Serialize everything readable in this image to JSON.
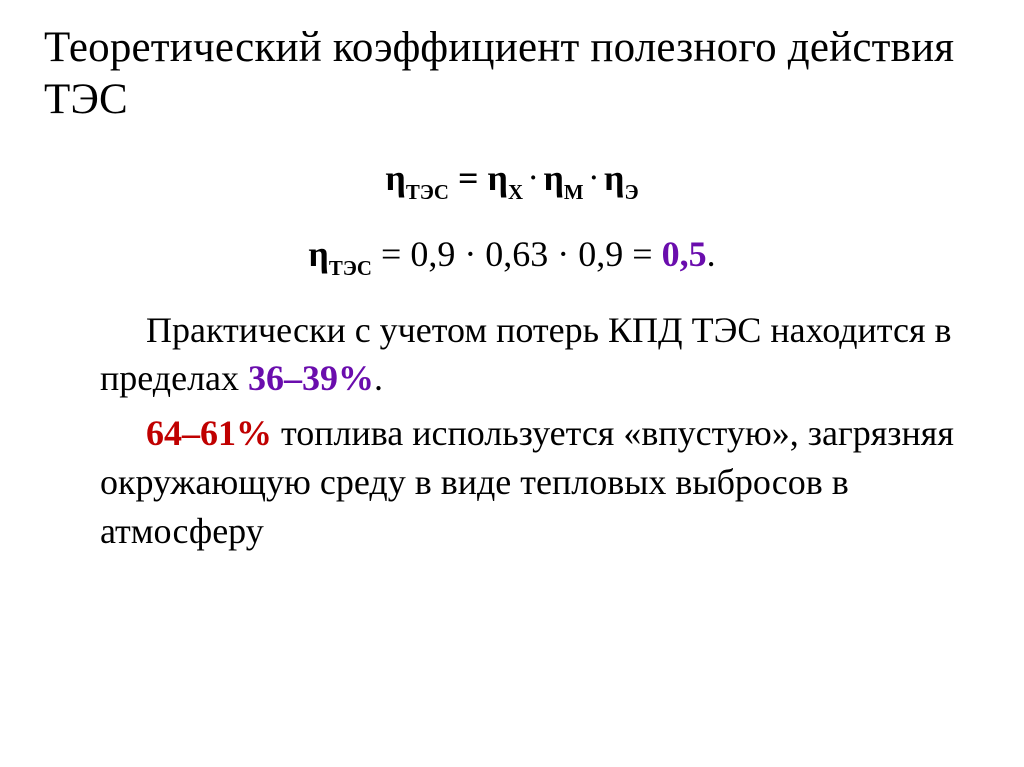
{
  "title": "Теоретический коэффициент полезного действия ТЭС",
  "formula": {
    "lhs_sym": "η",
    "lhs_sub": "ТЭС",
    "eq": " = ",
    "t1_sym": "η",
    "t1_sub": "Х",
    "dot": "·",
    "t2_sym": "η",
    "t2_sub": "М",
    "t3_sym": "η",
    "t3_sub": "Э"
  },
  "calc": {
    "lhs_sym": "η",
    "lhs_sub": "ТЭС",
    "expr": " = 0,9 · 0,63 · 0,9 = ",
    "result": "0,5",
    "period": "."
  },
  "para1": {
    "pre": "Практически с учетом потерь КПД ТЭС находится в пределах ",
    "highlight": "36–39%",
    "post": "."
  },
  "para2": {
    "highlight": "64–61%",
    "post": " топлива используется «впустую», загрязняя окружающую среду в виде тепловых выбросов в атмосферу"
  },
  "colors": {
    "purple": "#6a0dad",
    "red": "#c00000",
    "black": "#000000"
  }
}
